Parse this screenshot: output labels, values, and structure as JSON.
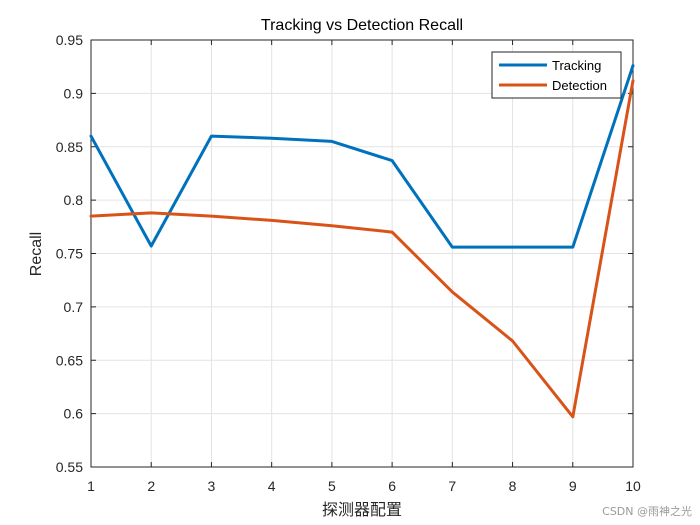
{
  "chart_data": {
    "type": "line",
    "title": "Tracking vs Detection Recall",
    "xlabel": "探测器配置",
    "ylabel": "Recall",
    "x": [
      1,
      2,
      3,
      4,
      5,
      6,
      7,
      8,
      9,
      10
    ],
    "xlim": [
      1,
      10
    ],
    "ylim": [
      0.55,
      0.95
    ],
    "xticks": [
      1,
      2,
      3,
      4,
      5,
      6,
      7,
      8,
      9,
      10
    ],
    "yticks": [
      0.55,
      0.6,
      0.65,
      0.7,
      0.75,
      0.8,
      0.85,
      0.9,
      0.95
    ],
    "grid": true,
    "legend_position": "top-right",
    "series": [
      {
        "name": "Tracking",
        "color": "#0072BD",
        "values": [
          0.86,
          0.757,
          0.86,
          0.858,
          0.855,
          0.837,
          0.756,
          0.756,
          0.756,
          0.926
        ]
      },
      {
        "name": "Detection",
        "color": "#D95319",
        "values": [
          0.785,
          0.788,
          0.785,
          0.781,
          0.776,
          0.77,
          0.714,
          0.668,
          0.597,
          0.912
        ]
      }
    ]
  },
  "watermark": "CSDN @雨神之光"
}
